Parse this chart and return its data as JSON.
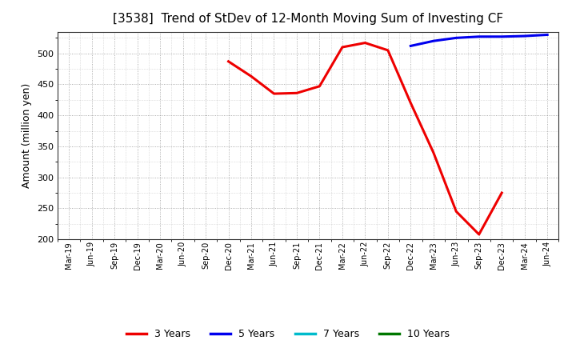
{
  "title": "[3538]  Trend of StDev of 12-Month Moving Sum of Investing CF",
  "ylabel": "Amount (million yen)",
  "x_labels": [
    "Mar-19",
    "Jun-19",
    "Sep-19",
    "Dec-19",
    "Mar-20",
    "Jun-20",
    "Sep-20",
    "Dec-20",
    "Mar-21",
    "Jun-21",
    "Sep-21",
    "Dec-21",
    "Mar-22",
    "Jun-22",
    "Sep-22",
    "Dec-22",
    "Mar-23",
    "Jun-23",
    "Sep-23",
    "Dec-23",
    "Mar-24",
    "Jun-24"
  ],
  "red_x": [
    "Dec-20",
    "Mar-21",
    "Jun-21",
    "Sep-21",
    "Dec-21",
    "Mar-22",
    "Jun-22",
    "Sep-22",
    "Dec-22",
    "Mar-23",
    "Jun-23",
    "Sep-23",
    "Dec-23"
  ],
  "red_y": [
    487,
    463,
    435,
    436,
    447,
    510,
    517,
    505,
    420,
    340,
    245,
    208,
    275
  ],
  "blue_x": [
    "Dec-22",
    "Mar-23",
    "Jun-23",
    "Sep-23",
    "Dec-23",
    "Mar-24",
    "Jun-24"
  ],
  "blue_y": [
    512,
    520,
    525,
    527,
    527,
    528,
    530
  ],
  "cyan_x": [],
  "cyan_y": [],
  "green_x": [],
  "green_y": [],
  "ylim": [
    200,
    535
  ],
  "yticks": [
    200,
    250,
    300,
    350,
    400,
    450,
    500
  ],
  "line_colors": {
    "3Y": "#ee0000",
    "5Y": "#0000ee",
    "7Y": "#00bbcc",
    "10Y": "#007700"
  },
  "line_width": 2.2,
  "bg_color": "#ffffff",
  "plot_bg_color": "#ffffff",
  "grid_color": "#999999",
  "legend_labels": [
    "3 Years",
    "5 Years",
    "7 Years",
    "10 Years"
  ]
}
